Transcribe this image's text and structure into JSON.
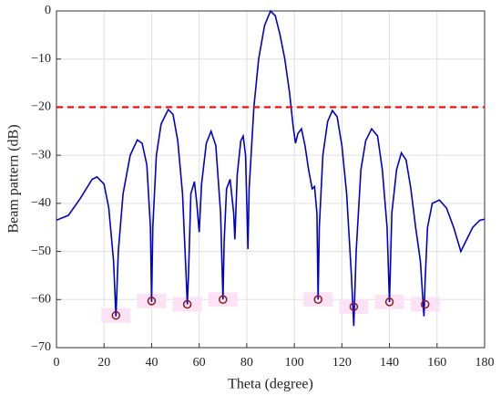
{
  "chart_data": {
    "type": "line",
    "xlabel": "Theta (degree)",
    "ylabel": "Beam pattern (dB)",
    "x": [
      0,
      5,
      10,
      15,
      17,
      20,
      22,
      24,
      25,
      26,
      28,
      31,
      34,
      36,
      38,
      39.5,
      40,
      40.5,
      42,
      44,
      47,
      49,
      51,
      53,
      54.5,
      55,
      55.5,
      56.5,
      58,
      59,
      60,
      61,
      63,
      65,
      67,
      69,
      70,
      70.5,
      71.5,
      73,
      74.5,
      75,
      76,
      77.5,
      78.5,
      79.5,
      80.5,
      81,
      83,
      85,
      87.5,
      90,
      92,
      94,
      96,
      98,
      99.5,
      100.5,
      101.5,
      103,
      104.5,
      106,
      107.5,
      108.5,
      109.5,
      110,
      110.5,
      112,
      114,
      116,
      118,
      120,
      122,
      124,
      125,
      126,
      128,
      130,
      132.5,
      135,
      137,
      139,
      140,
      141,
      143,
      145,
      147,
      149,
      151,
      153,
      154.5,
      155,
      156,
      158,
      161,
      164,
      167,
      170,
      172,
      175,
      178,
      180
    ],
    "values": [
      -43.5,
      -42.5,
      -39,
      -35,
      -34.5,
      -36,
      -41,
      -52,
      -63.5,
      -50,
      -38,
      -30,
      -26.8,
      -27.5,
      -32,
      -45,
      -60.5,
      -45,
      -30,
      -23.5,
      -20.5,
      -21.5,
      -27,
      -38,
      -55,
      -61,
      -55,
      -38,
      -35.5,
      -40,
      -46,
      -36,
      -27.5,
      -25,
      -28,
      -42,
      -60,
      -48,
      -37,
      -35,
      -42,
      -47.5,
      -34,
      -27,
      -26,
      -30,
      -49.5,
      -37,
      -20,
      -10,
      -3,
      0,
      -1,
      -5,
      -10,
      -17,
      -24,
      -27.5,
      -25.5,
      -24.5,
      -28,
      -33,
      -37,
      -36.5,
      -42,
      -60,
      -45,
      -30,
      -23,
      -20.7,
      -22,
      -28,
      -38,
      -55,
      -65.5,
      -50,
      -33,
      -27,
      -24.5,
      -26,
      -33,
      -45,
      -60.5,
      -42,
      -33,
      -29.5,
      -31,
      -37,
      -45,
      -52,
      -63.5,
      -56,
      -45,
      -40,
      -39.3,
      -41,
      -45,
      -50,
      -48,
      -45,
      -43.5,
      -43.3
    ],
    "color": "#0000cc",
    "markers": {
      "x": [
        25,
        40,
        55,
        70,
        110,
        125,
        140,
        155
      ],
      "values": [
        -63.3,
        -60.3,
        -61,
        -60,
        -60,
        -61.5,
        -60.5,
        -61
      ],
      "color": "#8b1a1a"
    },
    "threshold": {
      "value": -20,
      "color": "#ff0000"
    },
    "xlim": [
      0,
      180
    ],
    "xticks": [
      0,
      20,
      40,
      60,
      80,
      100,
      120,
      140,
      160,
      180
    ],
    "ylim": [
      -70,
      0
    ],
    "yticks": [
      0,
      {
        "value": -10,
        "label": "−10"
      },
      {
        "value": -20,
        "label": "−20"
      },
      {
        "value": -30,
        "label": "−30"
      },
      {
        "value": -40,
        "label": "−40"
      },
      {
        "value": -50,
        "label": "−50"
      },
      {
        "value": -60,
        "label": "−60"
      },
      {
        "value": -70,
        "label": "−70"
      }
    ],
    "grid": true
  }
}
